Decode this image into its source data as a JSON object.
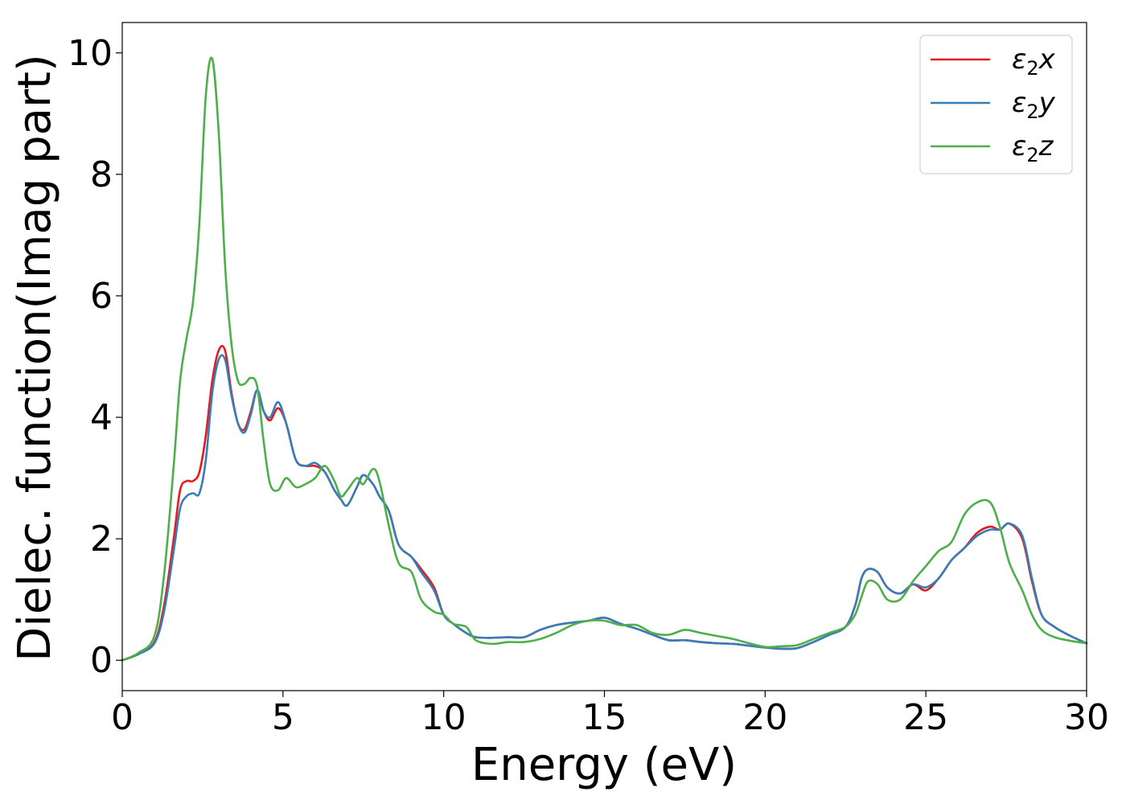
{
  "chart_data": {
    "type": "line",
    "xlabel": "Energy (eV)",
    "ylabel": "Dielec. function(Imag part)",
    "xlim": [
      0,
      30
    ],
    "ylim": [
      -0.5,
      10.5
    ],
    "xticks": [
      0,
      5,
      10,
      15,
      20,
      25,
      30
    ],
    "xtick_labels": [
      "0",
      "5",
      "10",
      "15",
      "20",
      "25",
      "30"
    ],
    "yticks": [
      0,
      2,
      4,
      6,
      8,
      10
    ],
    "ytick_labels": [
      "0",
      "2",
      "4",
      "6",
      "8",
      "10"
    ],
    "grid": false,
    "legend_position": "top-right",
    "series": [
      {
        "name": "ε₂x",
        "legend_base": "ε",
        "legend_sub": "2",
        "legend_var": "x",
        "color": "#e41a1c",
        "x": [
          0,
          0.5,
          1.0,
          1.3,
          1.6,
          1.8,
          2.0,
          2.2,
          2.4,
          2.6,
          2.8,
          3.0,
          3.2,
          3.4,
          3.6,
          3.8,
          4.0,
          4.2,
          4.4,
          4.6,
          4.85,
          5.1,
          5.4,
          5.7,
          6.0,
          6.3,
          6.6,
          6.8,
          7.0,
          7.3,
          7.5,
          7.8,
          8.0,
          8.3,
          8.6,
          9.0,
          9.3,
          9.7,
          10.0,
          10.3,
          10.7,
          11.0,
          11.5,
          12.0,
          12.5,
          13.0,
          13.5,
          14.0,
          14.5,
          15.0,
          15.5,
          16.0,
          16.5,
          17.0,
          17.5,
          18.0,
          18.5,
          19.0,
          19.5,
          20.0,
          20.5,
          21.0,
          21.5,
          22.0,
          22.5,
          22.8,
          23.0,
          23.2,
          23.5,
          23.8,
          24.2,
          24.6,
          25.0,
          25.4,
          25.8,
          26.2,
          26.6,
          27.0,
          27.3,
          27.6,
          28.0,
          28.3,
          28.6,
          29.0,
          29.5,
          30.0
        ],
        "y": [
          0,
          0.1,
          0.3,
          0.9,
          2.0,
          2.8,
          2.95,
          2.95,
          3.1,
          3.7,
          4.6,
          5.1,
          5.1,
          4.4,
          3.9,
          3.8,
          4.1,
          4.45,
          4.1,
          3.95,
          4.15,
          3.9,
          3.3,
          3.2,
          3.2,
          3.1,
          2.8,
          2.65,
          2.55,
          2.85,
          3.05,
          2.9,
          2.7,
          2.45,
          1.9,
          1.7,
          1.5,
          1.2,
          0.75,
          0.6,
          0.45,
          0.38,
          0.37,
          0.38,
          0.38,
          0.5,
          0.58,
          0.62,
          0.65,
          0.7,
          0.6,
          0.52,
          0.42,
          0.33,
          0.33,
          0.3,
          0.28,
          0.27,
          0.24,
          0.21,
          0.19,
          0.2,
          0.3,
          0.42,
          0.55,
          0.9,
          1.35,
          1.5,
          1.45,
          1.2,
          1.1,
          1.25,
          1.15,
          1.35,
          1.65,
          1.85,
          2.1,
          2.2,
          2.15,
          2.25,
          2.0,
          1.3,
          0.75,
          0.55,
          0.4,
          0.28
        ]
      },
      {
        "name": "ε₂y",
        "legend_base": "ε",
        "legend_sub": "2",
        "legend_var": "y",
        "color": "#377eb8",
        "x": [
          0,
          0.5,
          1.0,
          1.3,
          1.6,
          1.8,
          2.0,
          2.2,
          2.4,
          2.6,
          2.8,
          3.0,
          3.2,
          3.4,
          3.6,
          3.8,
          4.0,
          4.2,
          4.4,
          4.6,
          4.85,
          5.1,
          5.4,
          5.7,
          6.0,
          6.3,
          6.6,
          6.8,
          7.0,
          7.3,
          7.5,
          7.8,
          8.0,
          8.3,
          8.6,
          9.0,
          9.3,
          9.7,
          10.0,
          10.3,
          10.7,
          11.0,
          11.5,
          12.0,
          12.5,
          13.0,
          13.5,
          14.0,
          14.5,
          15.0,
          15.5,
          16.0,
          16.5,
          17.0,
          17.5,
          18.0,
          18.5,
          19.0,
          19.5,
          20.0,
          20.5,
          21.0,
          21.5,
          22.0,
          22.5,
          22.8,
          23.0,
          23.2,
          23.5,
          23.8,
          24.2,
          24.6,
          25.0,
          25.4,
          25.8,
          26.2,
          26.6,
          27.0,
          27.3,
          27.6,
          28.0,
          28.3,
          28.6,
          29.0,
          29.5,
          30.0
        ],
        "y": [
          0,
          0.1,
          0.28,
          0.8,
          1.8,
          2.5,
          2.7,
          2.75,
          2.75,
          3.3,
          4.4,
          4.95,
          4.95,
          4.35,
          3.9,
          3.75,
          4.05,
          4.45,
          4.1,
          4.0,
          4.25,
          3.9,
          3.3,
          3.2,
          3.25,
          3.1,
          2.8,
          2.65,
          2.55,
          2.85,
          3.05,
          2.9,
          2.7,
          2.45,
          1.9,
          1.7,
          1.45,
          1.15,
          0.75,
          0.6,
          0.45,
          0.38,
          0.37,
          0.38,
          0.38,
          0.5,
          0.58,
          0.62,
          0.65,
          0.7,
          0.6,
          0.52,
          0.42,
          0.33,
          0.33,
          0.3,
          0.28,
          0.27,
          0.24,
          0.21,
          0.19,
          0.2,
          0.3,
          0.42,
          0.55,
          0.9,
          1.35,
          1.5,
          1.45,
          1.2,
          1.1,
          1.25,
          1.2,
          1.35,
          1.65,
          1.85,
          2.05,
          2.15,
          2.15,
          2.25,
          2.05,
          1.35,
          0.75,
          0.55,
          0.4,
          0.28
        ]
      },
      {
        "name": "ε₂z",
        "legend_base": "ε",
        "legend_sub": "2",
        "legend_var": "z",
        "color": "#4daf4a",
        "x": [
          0,
          0.5,
          1.0,
          1.3,
          1.6,
          1.8,
          2.0,
          2.2,
          2.4,
          2.6,
          2.8,
          3.0,
          3.2,
          3.4,
          3.6,
          3.8,
          4.0,
          4.2,
          4.4,
          4.6,
          4.85,
          5.1,
          5.4,
          5.7,
          6.0,
          6.3,
          6.6,
          6.8,
          7.0,
          7.3,
          7.5,
          7.8,
          8.0,
          8.3,
          8.6,
          9.0,
          9.3,
          9.7,
          10.0,
          10.3,
          10.7,
          11.0,
          11.5,
          12.0,
          12.5,
          13.0,
          13.5,
          14.0,
          14.5,
          15.0,
          15.5,
          16.0,
          16.5,
          17.0,
          17.5,
          18.0,
          18.5,
          19.0,
          19.5,
          20.0,
          20.5,
          21.0,
          21.5,
          22.0,
          22.5,
          22.8,
          23.0,
          23.2,
          23.5,
          23.8,
          24.2,
          24.6,
          25.0,
          25.4,
          25.8,
          26.2,
          26.6,
          27.0,
          27.3,
          27.6,
          28.0,
          28.3,
          28.6,
          29.0,
          29.5,
          30.0
        ],
        "y": [
          0,
          0.12,
          0.4,
          1.4,
          3.2,
          4.6,
          5.3,
          5.9,
          7.2,
          9.3,
          9.9,
          8.7,
          6.5,
          5.2,
          4.6,
          4.55,
          4.65,
          4.5,
          3.6,
          2.9,
          2.8,
          3.0,
          2.85,
          2.9,
          3.0,
          3.2,
          2.95,
          2.7,
          2.8,
          3.0,
          2.9,
          3.15,
          2.95,
          2.2,
          1.6,
          1.45,
          1.0,
          0.8,
          0.75,
          0.6,
          0.55,
          0.33,
          0.27,
          0.3,
          0.3,
          0.35,
          0.45,
          0.58,
          0.65,
          0.65,
          0.58,
          0.58,
          0.45,
          0.42,
          0.5,
          0.45,
          0.4,
          0.35,
          0.28,
          0.22,
          0.23,
          0.25,
          0.35,
          0.45,
          0.55,
          0.75,
          1.05,
          1.3,
          1.25,
          1.0,
          1.0,
          1.3,
          1.55,
          1.8,
          1.95,
          2.4,
          2.6,
          2.6,
          2.2,
          1.6,
          1.15,
          0.75,
          0.5,
          0.38,
          0.32,
          0.28
        ]
      }
    ]
  }
}
